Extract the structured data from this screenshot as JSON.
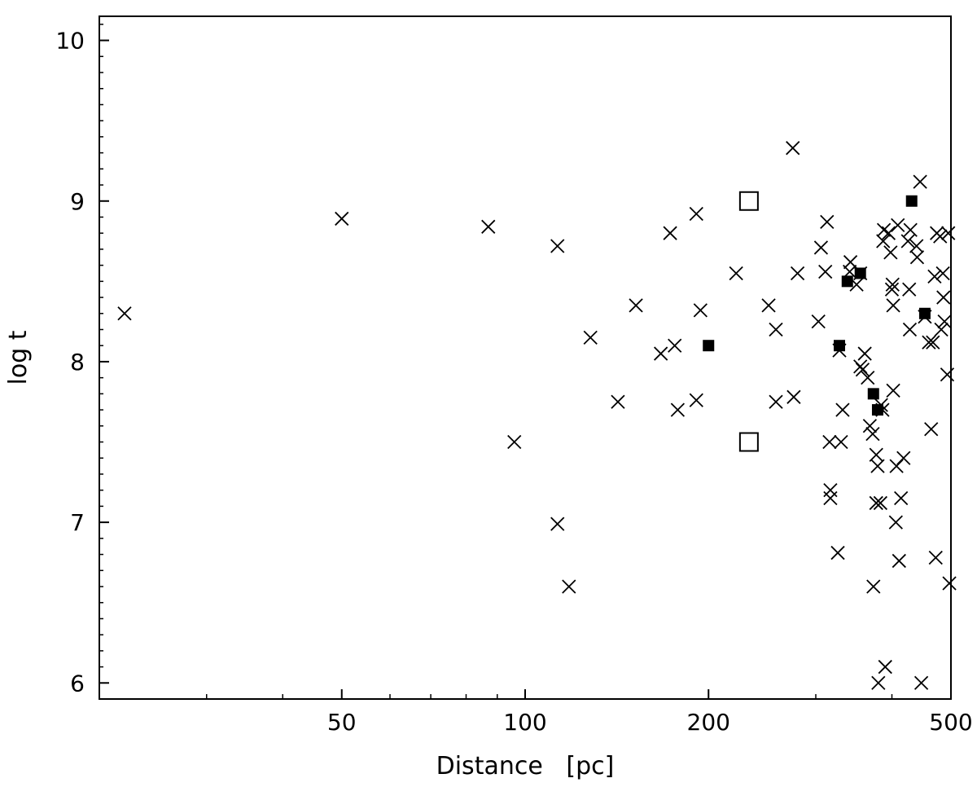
{
  "chart_data": {
    "type": "scatter",
    "x_scale": "log",
    "xlabel": "Distance   [pc]",
    "ylabel": "log t",
    "xlim": [
      20,
      500
    ],
    "ylim": [
      5.9,
      10.15
    ],
    "x_ticks": [
      50,
      100,
      200,
      500
    ],
    "x_tick_labels": [
      "50",
      "100",
      "200",
      "500"
    ],
    "y_ticks": [
      6,
      7,
      8,
      9,
      10
    ],
    "y_tick_labels": [
      "6",
      "7",
      "8",
      "9",
      "10"
    ],
    "grid": false,
    "legend": "none",
    "series": [
      {
        "marker": "cross",
        "points": [
          [
            22,
            8.3
          ],
          [
            50,
            8.89
          ],
          [
            87,
            8.84
          ],
          [
            96,
            7.5
          ],
          [
            113,
            8.72
          ],
          [
            113,
            6.99
          ],
          [
            118,
            6.6
          ],
          [
            128,
            8.15
          ],
          [
            142,
            7.75
          ],
          [
            152,
            8.35
          ],
          [
            167,
            8.05
          ],
          [
            173,
            8.8
          ],
          [
            176,
            8.1
          ],
          [
            178,
            7.7
          ],
          [
            191,
            8.92
          ],
          [
            191,
            7.76
          ],
          [
            194,
            8.32
          ],
          [
            222,
            8.55
          ],
          [
            251,
            8.35
          ],
          [
            258,
            8.2
          ],
          [
            258,
            7.75
          ],
          [
            275,
            9.33
          ],
          [
            276,
            7.78
          ],
          [
            280,
            8.55
          ],
          [
            303,
            8.25
          ],
          [
            306,
            8.71
          ],
          [
            311,
            8.56
          ],
          [
            313,
            8.87
          ],
          [
            316,
            7.5
          ],
          [
            317,
            7.2
          ],
          [
            317,
            7.15
          ],
          [
            326,
            6.81
          ],
          [
            330,
            7.5
          ],
          [
            332,
            7.7
          ],
          [
            328,
            8.07
          ],
          [
            341,
            8.56
          ],
          [
            342,
            8.62
          ],
          [
            355,
            8.55
          ],
          [
            350,
            8.48
          ],
          [
            355,
            7.97
          ],
          [
            358,
            7.95
          ],
          [
            361,
            8.05
          ],
          [
            365,
            7.9
          ],
          [
            368,
            7.6
          ],
          [
            372,
            7.55
          ],
          [
            373,
            6.6
          ],
          [
            377,
            7.42
          ],
          [
            379,
            7.35
          ],
          [
            377,
            7.12
          ],
          [
            380,
            6.0
          ],
          [
            383,
            7.12
          ],
          [
            384,
            7.73
          ],
          [
            386,
            7.7
          ],
          [
            387,
            8.75
          ],
          [
            388,
            8.82
          ],
          [
            390,
            6.1
          ],
          [
            395,
            8.8
          ],
          [
            398,
            8.68
          ],
          [
            400,
            8.45
          ],
          [
            401,
            8.48
          ],
          [
            402,
            8.35
          ],
          [
            402,
            7.82
          ],
          [
            406,
            7.0
          ],
          [
            407,
            7.35
          ],
          [
            409,
            8.85
          ],
          [
            411,
            6.76
          ],
          [
            414,
            7.15
          ],
          [
            418,
            7.4
          ],
          [
            425,
            8.75
          ],
          [
            427,
            8.45
          ],
          [
            428,
            8.2
          ],
          [
            429,
            8.82
          ],
          [
            439,
            8.72
          ],
          [
            440,
            8.65
          ],
          [
            445,
            9.12
          ],
          [
            447,
            6.0
          ],
          [
            453,
            8.28
          ],
          [
            460,
            8.12
          ],
          [
            464,
            7.58
          ],
          [
            467,
            8.12
          ],
          [
            470,
            8.53
          ],
          [
            472,
            6.78
          ],
          [
            474,
            8.8
          ],
          [
            480,
            8.78
          ],
          [
            482,
            8.2
          ],
          [
            485,
            8.55
          ],
          [
            486,
            8.4
          ],
          [
            488,
            8.25
          ],
          [
            493,
            7.92
          ],
          [
            497,
            6.62
          ],
          [
            495,
            8.8
          ]
        ]
      },
      {
        "marker": "filled-square",
        "points": [
          [
            200,
            8.1
          ],
          [
            328,
            8.1
          ],
          [
            338,
            8.5
          ],
          [
            355,
            8.55
          ],
          [
            373,
            7.8
          ],
          [
            379,
            7.7
          ],
          [
            431,
            9.0
          ],
          [
            453,
            8.3
          ]
        ]
      },
      {
        "marker": "open-square",
        "points": [
          [
            233,
            9.0
          ],
          [
            233,
            7.5
          ]
        ]
      }
    ]
  }
}
